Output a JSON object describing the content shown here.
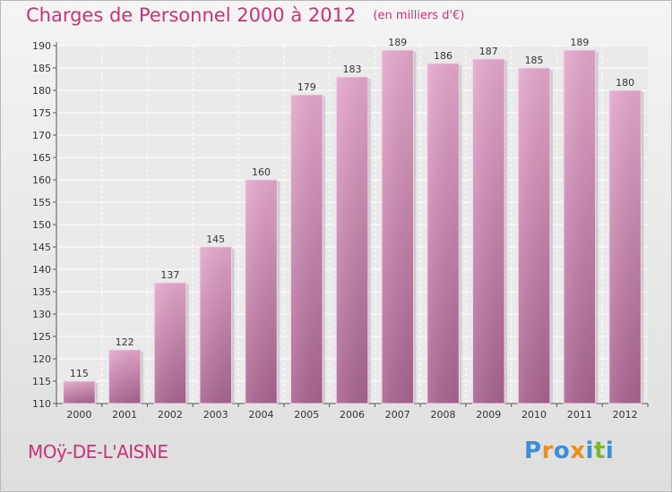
{
  "chart_data": {
    "type": "bar",
    "title": "Charges de Personnel 2000 à 2012",
    "subtitle": "(en milliers d'€)",
    "categories": [
      "2000",
      "2001",
      "2002",
      "2003",
      "2004",
      "2005",
      "2006",
      "2007",
      "2008",
      "2009",
      "2010",
      "2011",
      "2012"
    ],
    "values": [
      115,
      122,
      137,
      145,
      160,
      179,
      183,
      189,
      186,
      187,
      185,
      189,
      180
    ],
    "ylim": [
      110,
      190
    ],
    "yticks": [
      110,
      115,
      120,
      125,
      130,
      135,
      140,
      145,
      150,
      155,
      160,
      165,
      170,
      175,
      180,
      185,
      190
    ],
    "grid": true,
    "bar_color": "#d68fb6"
  },
  "town_name": "MOÿ-DE-L'AISNE",
  "logo": {
    "letters": [
      "P",
      "r",
      "o",
      "x",
      "i",
      "t",
      "i"
    ],
    "colors": [
      "#3a8fd6",
      "#e8901a",
      "#3a8fd6",
      "#e8901a",
      "#3a8fd6",
      "#7ab82e",
      "#3a8fd6"
    ]
  }
}
